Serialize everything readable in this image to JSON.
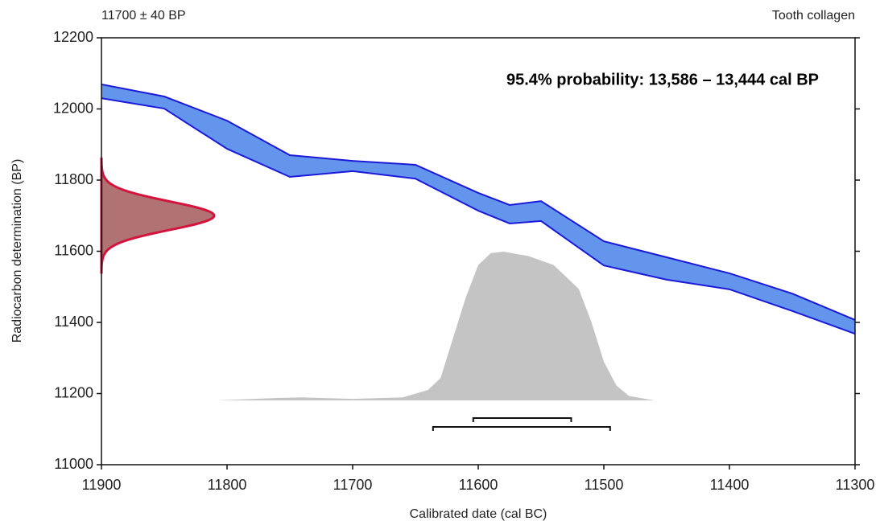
{
  "chart_data": {
    "type": "calibration",
    "title": "11700 ± 40 BP",
    "subtitle": "Tooth collagen",
    "annotation": "95.4% probability: 13,586 – 13,444 cal BP",
    "x_label": "Calibrated date (cal BC)",
    "y_label": "Radiocarbon determination (BP)",
    "xlim": [
      11900,
      11300
    ],
    "xticks": [
      11900,
      11800,
      11700,
      11600,
      11500,
      11400,
      11300
    ],
    "ylim": [
      11000,
      12200
    ],
    "yticks": [
      11000,
      11200,
      11400,
      11600,
      11800,
      12000,
      12200
    ],
    "curve": {
      "color": "#6495ed",
      "edge_color": "#1a1ad8",
      "x": [
        11900,
        11850,
        11800,
        11750,
        11700,
        11650,
        11600,
        11575,
        11550,
        11500,
        11450,
        11400,
        11350,
        11300
      ],
      "upper": [
        12069,
        12035,
        11967,
        11870,
        11854,
        11843,
        11764,
        11730,
        11741,
        11628,
        11583,
        11538,
        11481,
        11407
      ],
      "lower": [
        12030,
        12001,
        11888,
        11809,
        11825,
        11804,
        11714,
        11678,
        11685,
        11560,
        11520,
        11493,
        11432,
        11368
      ]
    },
    "measurement": {
      "mean": 11700,
      "sd": 40,
      "color": "#b07272",
      "edge_color": "#d4143c"
    },
    "posterior": {
      "color": "#c4c4c4",
      "x": [
        11808,
        11760,
        11740,
        11700,
        11660,
        11640,
        11630,
        11620,
        11610,
        11600,
        11590,
        11580,
        11560,
        11540,
        11520,
        11510,
        11500,
        11490,
        11480,
        11460,
        11415
      ],
      "values": [
        0,
        1.6,
        2,
        1,
        2,
        7,
        15,
        42,
        69,
        91,
        99,
        100,
        97,
        91,
        75,
        53,
        26,
        10,
        3,
        0,
        0
      ]
    },
    "ranges": [
      [
        11604,
        11526
      ],
      [
        11636,
        11495
      ]
    ]
  }
}
